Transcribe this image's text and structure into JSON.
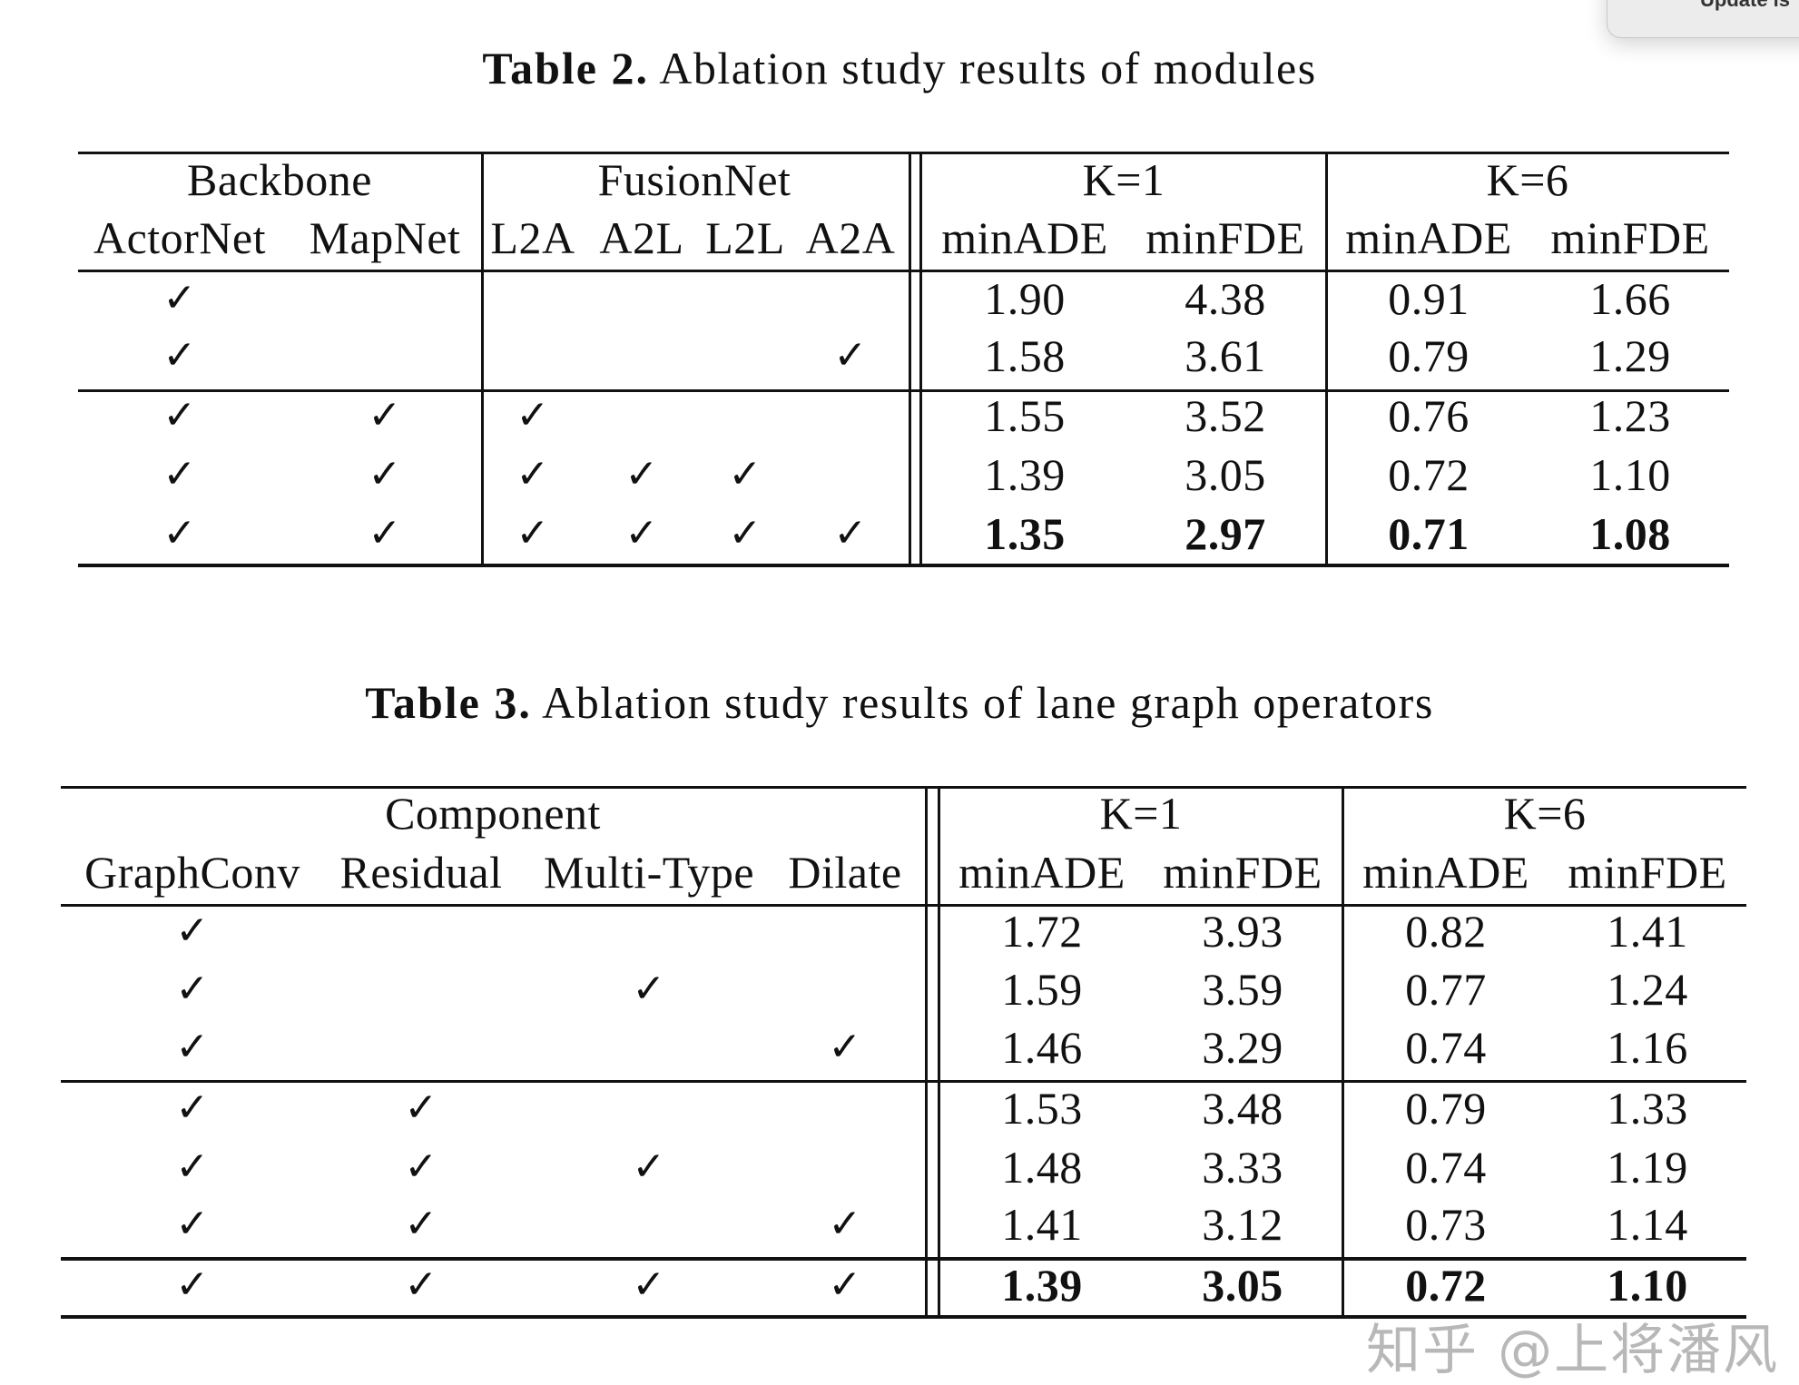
{
  "popup": {
    "text": "Update is"
  },
  "tables": [
    {
      "label": "Table 2.",
      "caption": "Ablation study results of modules",
      "group_headers": [
        "Backbone",
        "FusionNet",
        "K=1",
        "K=6"
      ],
      "columns": [
        "ActorNet",
        "MapNet",
        "L2A",
        "A2L",
        "L2L",
        "A2A",
        "minADE",
        "minFDE",
        "minADE",
        "minFDE"
      ],
      "check_symbol": "✓",
      "rows": [
        {
          "checks": [
            true,
            false,
            false,
            false,
            false,
            false
          ],
          "values": [
            "1.90",
            "4.38",
            "0.91",
            "1.66"
          ],
          "bold": false
        },
        {
          "checks": [
            true,
            false,
            false,
            false,
            false,
            true
          ],
          "values": [
            "1.58",
            "3.61",
            "0.79",
            "1.29"
          ],
          "bold": false
        },
        {
          "checks": [
            true,
            true,
            true,
            false,
            false,
            false
          ],
          "values": [
            "1.55",
            "3.52",
            "0.76",
            "1.23"
          ],
          "bold": false
        },
        {
          "checks": [
            true,
            true,
            true,
            true,
            true,
            false
          ],
          "values": [
            "1.39",
            "3.05",
            "0.72",
            "1.10"
          ],
          "bold": false
        },
        {
          "checks": [
            true,
            true,
            true,
            true,
            true,
            true
          ],
          "values": [
            "1.35",
            "2.97",
            "0.71",
            "1.08"
          ],
          "bold": true
        }
      ]
    },
    {
      "label": "Table 3.",
      "caption": "Ablation study results of lane graph operators",
      "group_headers": [
        "Component",
        "K=1",
        "K=6"
      ],
      "columns": [
        "GraphConv",
        "Residual",
        "Multi-Type",
        "Dilate",
        "minADE",
        "minFDE",
        "minADE",
        "minFDE"
      ],
      "check_symbol": "✓",
      "rows": [
        {
          "checks": [
            true,
            false,
            false,
            false
          ],
          "values": [
            "1.72",
            "3.93",
            "0.82",
            "1.41"
          ],
          "bold": false
        },
        {
          "checks": [
            true,
            false,
            true,
            false
          ],
          "values": [
            "1.59",
            "3.59",
            "0.77",
            "1.24"
          ],
          "bold": false
        },
        {
          "checks": [
            true,
            false,
            false,
            true
          ],
          "values": [
            "1.46",
            "3.29",
            "0.74",
            "1.16"
          ],
          "bold": false
        },
        {
          "checks": [
            true,
            true,
            false,
            false
          ],
          "values": [
            "1.53",
            "3.48",
            "0.79",
            "1.33"
          ],
          "bold": false
        },
        {
          "checks": [
            true,
            true,
            true,
            false
          ],
          "values": [
            "1.48",
            "3.33",
            "0.74",
            "1.19"
          ],
          "bold": false
        },
        {
          "checks": [
            true,
            true,
            false,
            true
          ],
          "values": [
            "1.41",
            "3.12",
            "0.73",
            "1.14"
          ],
          "bold": false
        },
        {
          "checks": [
            true,
            true,
            true,
            true
          ],
          "values": [
            "1.39",
            "3.05",
            "0.72",
            "1.10"
          ],
          "bold": true
        }
      ]
    }
  ],
  "watermark": "知乎 @上将潘风"
}
